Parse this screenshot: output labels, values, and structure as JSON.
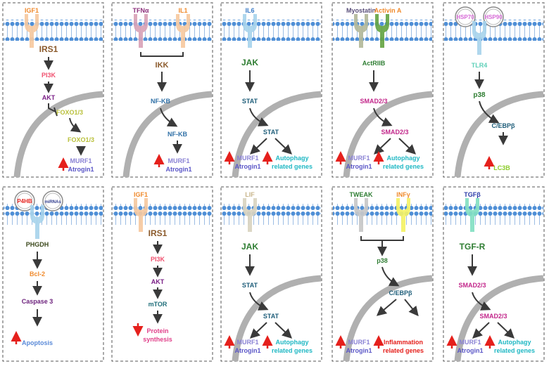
{
  "colors": {
    "ligand_peach": "#f6c9a0",
    "ligand_pink": "#d9a3b7",
    "ligand_blue": "#a8d4ec",
    "ligand_sage": "#b3b89a",
    "ligand_green": "#66a544",
    "ligand_grey": "#c8c8c8",
    "ligand_yellow": "#f4f266",
    "ligand_teal": "#83e0c2",
    "membrane": "#4f8fd6",
    "arrow_red": "#e5201c"
  },
  "panels": [
    {
      "ligands": [
        {
          "label": "IGF1",
          "color": "#f08a2c"
        }
      ],
      "nodes": [
        {
          "label": "IRS1",
          "color": "#8b5a2b"
        },
        {
          "label": "PI3K",
          "color": "#f0506e"
        },
        {
          "label": "AKT",
          "color": "#7a1e86"
        },
        {
          "label": "FOXO1/3",
          "color": "#b9c03a"
        },
        {
          "label": "FOXO1/3",
          "color": "#b9c03a"
        }
      ],
      "outputs": [
        {
          "label": "MURF1",
          "color": "#8a82d4"
        },
        {
          "label": "Atrogin1",
          "color": "#5a56c7"
        }
      ]
    },
    {
      "ligands": [
        {
          "label": "TFNα",
          "color": "#8b2e7a"
        },
        {
          "label": "IL1",
          "color": "#f08a2c"
        }
      ],
      "nodes": [
        {
          "label": "IKK",
          "color": "#8b5a2b"
        },
        {
          "label": "NF-KB",
          "color": "#2e6fa6"
        },
        {
          "label": "NF-KB",
          "color": "#2e6fa6"
        }
      ],
      "outputs": [
        {
          "label": "MURF1",
          "color": "#8a82d4"
        },
        {
          "label": "Atrogin1",
          "color": "#5a56c7"
        }
      ]
    },
    {
      "ligands": [
        {
          "label": "IL6",
          "color": "#3a7bc8"
        }
      ],
      "nodes": [
        {
          "label": "JAK",
          "color": "#2e7d32"
        },
        {
          "label": "STAT",
          "color": "#1f5e7a"
        },
        {
          "label": "STAT",
          "color": "#1f5e7a"
        }
      ],
      "outputs": [
        {
          "label": "MURF1",
          "color": "#8a82d4"
        },
        {
          "label": "Atrogin1",
          "color": "#5a56c7"
        },
        {
          "label": "Autophagy",
          "color": "#20b8c4"
        },
        {
          "label": "related genes",
          "color": "#20b8c4"
        }
      ]
    },
    {
      "ligands": [
        {
          "label": "Myostatin",
          "color": "#5a4f7a"
        },
        {
          "label": "Activin A",
          "color": "#f08a2c"
        }
      ],
      "nodes": [
        {
          "label": "ActRIIB",
          "color": "#2e7d32"
        },
        {
          "label": "SMAD2/3",
          "color": "#c2268a"
        },
        {
          "label": "SMAD2/3",
          "color": "#c2268a"
        }
      ],
      "outputs": [
        {
          "label": "MURF1",
          "color": "#8a82d4"
        },
        {
          "label": "Atrogin1",
          "color": "#5a56c7"
        },
        {
          "label": "Autophagy",
          "color": "#20b8c4"
        },
        {
          "label": "related genes",
          "color": "#20b8c4"
        }
      ]
    },
    {
      "ligands": [
        {
          "label": "HSP70",
          "color": "#d667d6"
        },
        {
          "label": "HSP90",
          "color": "#d667d6"
        }
      ],
      "nodes": [
        {
          "label": "TLR4",
          "color": "#5ed0b8"
        },
        {
          "label": "p38",
          "color": "#2e7d32"
        },
        {
          "label": "C/EBPβ",
          "color": "#1f5e7a"
        }
      ],
      "outputs": [
        {
          "label": "LC3B",
          "color": "#8ccc2a"
        }
      ]
    },
    {
      "ligands": [
        {
          "label": "P4HB",
          "color": "#e5201c"
        },
        {
          "label": "miRNAs",
          "color": "#2e3a8c"
        }
      ],
      "nodes": [
        {
          "label": "PHGDH",
          "color": "#3d4a1e"
        },
        {
          "label": "Bcl-2",
          "color": "#f08a2c"
        },
        {
          "label": "Caspase 3",
          "color": "#6a1e7a"
        }
      ],
      "outputs": [
        {
          "label": "Apoptosis",
          "color": "#5a8ad8"
        }
      ]
    },
    {
      "ligands": [
        {
          "label": "IGF1",
          "color": "#f08a2c"
        }
      ],
      "nodes": [
        {
          "label": "IRS1",
          "color": "#8b5a2b"
        },
        {
          "label": "PI3K",
          "color": "#f0506e"
        },
        {
          "label": "AKT",
          "color": "#7a1e86"
        },
        {
          "label": "mTOR",
          "color": "#1f6e7a"
        }
      ],
      "outputs": [
        {
          "label": "Protein",
          "color": "#e0408a"
        },
        {
          "label": "synthesis",
          "color": "#e0408a"
        }
      ]
    },
    {
      "ligands": [
        {
          "label": "LIF",
          "color": "#c8b48a"
        }
      ],
      "nodes": [
        {
          "label": "JAK",
          "color": "#2e7d32"
        },
        {
          "label": "STAT",
          "color": "#1f5e7a"
        },
        {
          "label": "STAT",
          "color": "#1f5e7a"
        }
      ],
      "outputs": [
        {
          "label": "MURF1",
          "color": "#8a82d4"
        },
        {
          "label": "Atrogin1",
          "color": "#5a56c7"
        },
        {
          "label": "Autophagy",
          "color": "#20b8c4"
        },
        {
          "label": "related genes",
          "color": "#20b8c4"
        }
      ]
    },
    {
      "ligands": [
        {
          "label": "TWEAK",
          "color": "#2e7d32"
        },
        {
          "label": "INFγ",
          "color": "#f08a2c"
        }
      ],
      "nodes": [
        {
          "label": "p38",
          "color": "#2e7d32"
        },
        {
          "label": "C/EBPβ",
          "color": "#1f5e7a"
        }
      ],
      "outputs": [
        {
          "label": "MURF1",
          "color": "#8a82d4"
        },
        {
          "label": "Atrogin1",
          "color": "#5a56c7"
        },
        {
          "label": "Inflammation",
          "color": "#e5201c"
        },
        {
          "label": "related genes",
          "color": "#e5201c"
        }
      ]
    },
    {
      "ligands": [
        {
          "label": "TGFβ",
          "color": "#2a3aa8"
        }
      ],
      "nodes": [
        {
          "label": "TGF-R",
          "color": "#2e7d32"
        },
        {
          "label": "SMAD2/3",
          "color": "#c2268a"
        },
        {
          "label": "SMAD2/3",
          "color": "#c2268a"
        }
      ],
      "outputs": [
        {
          "label": "MURF1",
          "color": "#8a82d4"
        },
        {
          "label": "Atrogin1",
          "color": "#5a56c7"
        },
        {
          "label": "Autophagy",
          "color": "#20b8c4"
        },
        {
          "label": "related genes",
          "color": "#20b8c4"
        }
      ]
    }
  ]
}
